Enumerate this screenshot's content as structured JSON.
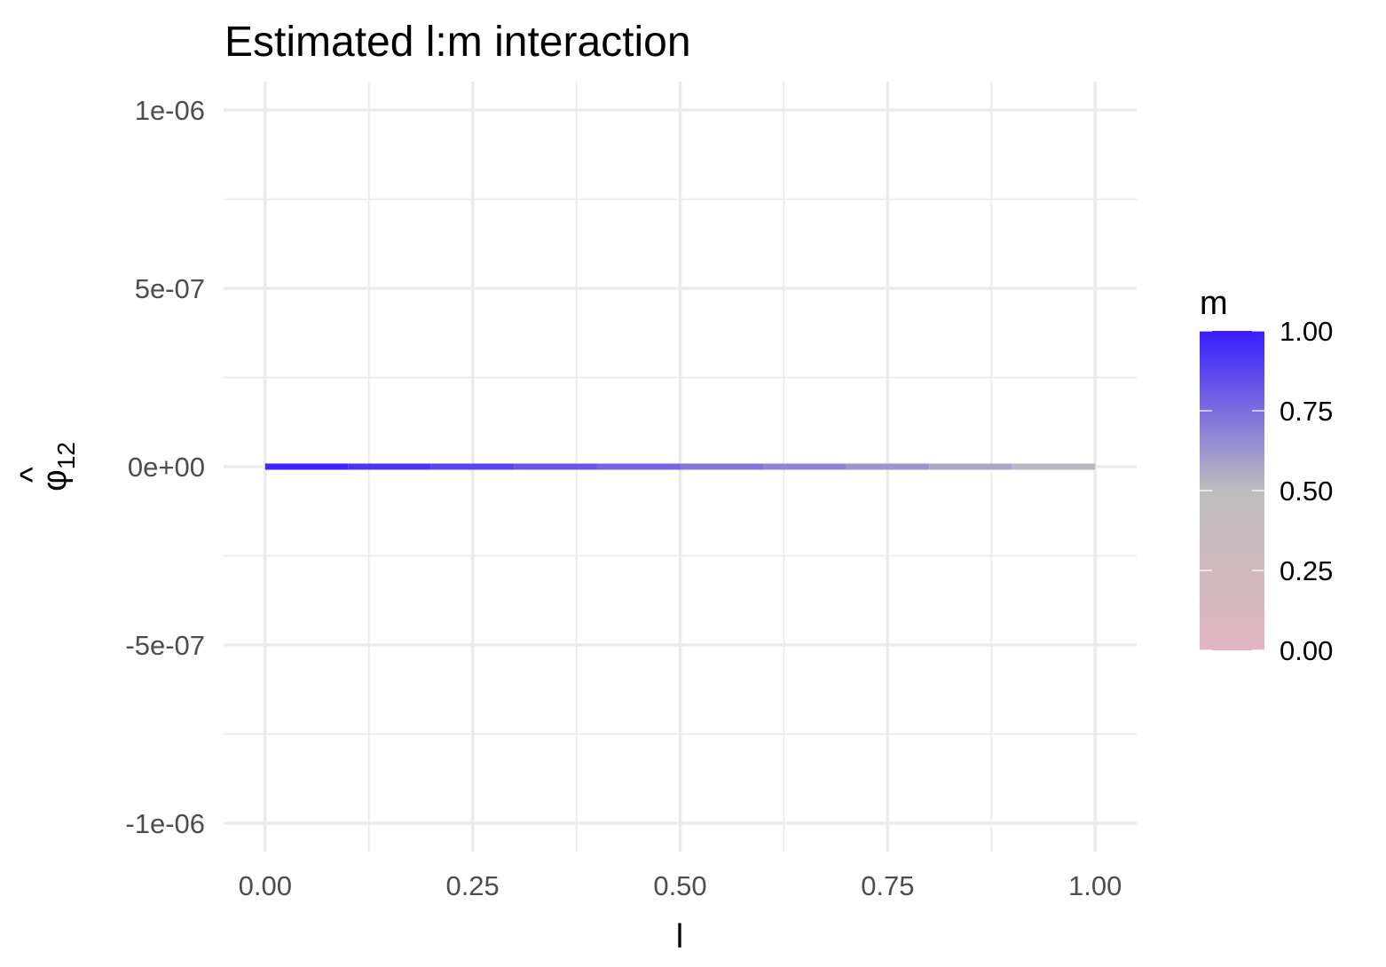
{
  "chart_data": {
    "type": "line",
    "title": "Estimated l:m interaction",
    "xlabel": "l",
    "ylabel": "φ̂12",
    "ylabel_parts": {
      "hat": "^",
      "symbol": "φ",
      "subscript": "12"
    },
    "xlim": [
      -0.05,
      1.05
    ],
    "ylim": [
      -1.08e-06,
      1.08e-06
    ],
    "x_ticks": [
      0,
      0.25,
      0.5,
      0.75,
      1
    ],
    "x_tick_labels": [
      "0.00",
      "0.25",
      "0.50",
      "0.75",
      "1.00"
    ],
    "y_ticks": [
      -1e-06,
      -5e-07,
      0,
      5e-07,
      1e-06
    ],
    "y_tick_labels": [
      "-1e-06",
      "-5e-07",
      "0e+00",
      "5e-07",
      "1e-06"
    ],
    "grid": true,
    "series": [
      {
        "x": [
          0,
          0.1,
          0.2,
          0.3,
          0.4,
          0.5,
          0.6,
          0.7,
          0.8,
          0.9,
          1.0
        ],
        "y": [
          0,
          0,
          0,
          0,
          0,
          0,
          0,
          0,
          0,
          0,
          0
        ],
        "color_value": [
          1.0,
          0.95,
          0.9,
          0.85,
          0.8,
          0.75,
          0.7,
          0.65,
          0.6,
          0.55,
          0.5
        ]
      }
    ],
    "color_scale": {
      "title": "m",
      "low": "#e0b4c0",
      "mid": "#bebebe",
      "high": "#3a1cff",
      "range": [
        0,
        1
      ],
      "midpoint": 0.5,
      "breaks": [
        0,
        0.25,
        0.5,
        0.75,
        1
      ],
      "break_labels": [
        "0.00",
        "0.25",
        "0.50",
        "0.75",
        "1.00"
      ],
      "legend_position": "right"
    }
  }
}
